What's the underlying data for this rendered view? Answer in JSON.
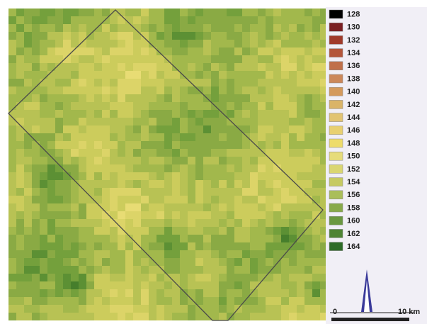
{
  "legend": {
    "items": [
      {
        "label": "128",
        "color": "#000000"
      },
      {
        "label": "130",
        "color": "#7a1f22"
      },
      {
        "label": "132",
        "color": "#a03a2a"
      },
      {
        "label": "134",
        "color": "#b4563a"
      },
      {
        "label": "136",
        "color": "#c0704a"
      },
      {
        "label": "138",
        "color": "#cc885a"
      },
      {
        "label": "140",
        "color": "#d49a5c"
      },
      {
        "label": "142",
        "color": "#dab468"
      },
      {
        "label": "144",
        "color": "#e2c472"
      },
      {
        "label": "146",
        "color": "#e8d070"
      },
      {
        "label": "148",
        "color": "#eedc6a"
      },
      {
        "label": "150",
        "color": "#e6dc7a"
      },
      {
        "label": "152",
        "color": "#dad672"
      },
      {
        "label": "154",
        "color": "#c6ca62"
      },
      {
        "label": "156",
        "color": "#aabe5a"
      },
      {
        "label": "158",
        "color": "#88aa4a"
      },
      {
        "label": "160",
        "color": "#6a9840"
      },
      {
        "label": "162",
        "color": "#4e8434"
      },
      {
        "label": "164",
        "color": "#2e6c28"
      }
    ]
  },
  "scale_bar": {
    "start": "0",
    "end": "10 km"
  }
}
